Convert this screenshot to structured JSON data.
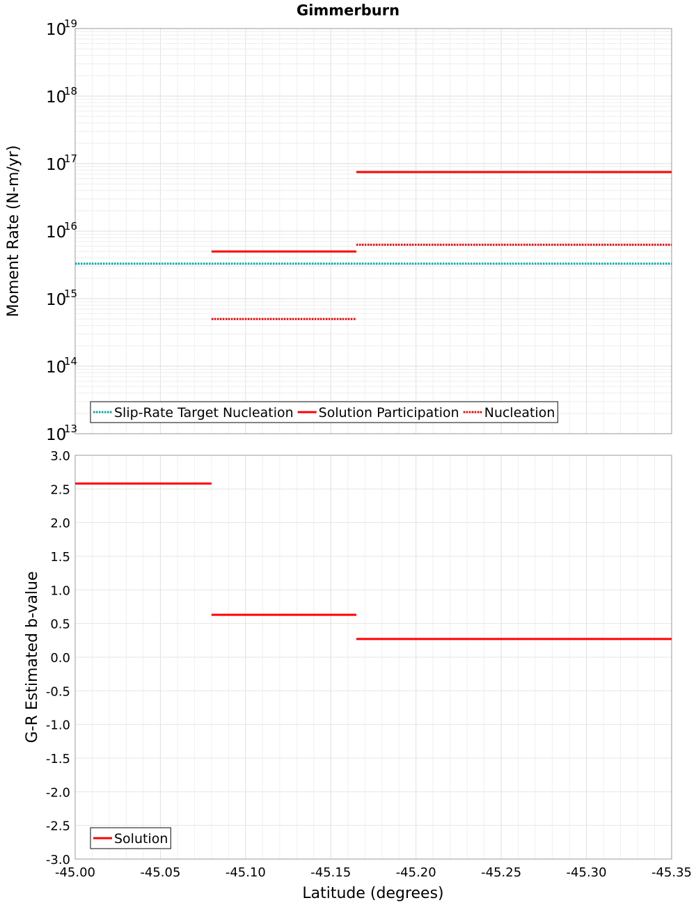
{
  "chart_data": [
    {
      "type": "line",
      "title": "Gimmerburn",
      "xlabel": "",
      "ylabel": "Moment Rate (N-m/yr)",
      "yscale": "log",
      "xlim": [
        -45.0,
        -45.35
      ],
      "ylim": [
        10000000000000.0,
        1e+19
      ],
      "yticks": [
        {
          "base": "10",
          "exp": "13",
          "value": 10000000000000.0
        },
        {
          "base": "10",
          "exp": "14",
          "value": 100000000000000.0
        },
        {
          "base": "10",
          "exp": "15",
          "value": 1000000000000000.0
        },
        {
          "base": "10",
          "exp": "16",
          "value": 1e+16
        },
        {
          "base": "10",
          "exp": "17",
          "value": 1e+17
        },
        {
          "base": "10",
          "exp": "18",
          "value": 1e+18
        },
        {
          "base": "10",
          "exp": "19",
          "value": 1e+19
        }
      ],
      "legend_position": "bottom-left",
      "series": [
        {
          "name": "Slip-Rate Target Nucleation",
          "color": "#00aaaa",
          "style": "dotted",
          "segments": [
            {
              "x0": -45.0,
              "x1": -45.35,
              "y": 3300000000000000.0
            }
          ]
        },
        {
          "name": "Solution Participation",
          "color": "#ff0000",
          "style": "solid",
          "segments": [
            {
              "x0": -45.08,
              "x1": -45.165,
              "y": 5000000000000000.0
            },
            {
              "x0": -45.165,
              "x1": -45.35,
              "y": 7.5e+16
            }
          ]
        },
        {
          "name": "Nucleation",
          "color": "#ff0000",
          "style": "dotted",
          "segments": [
            {
              "x0": -45.08,
              "x1": -45.165,
              "y": 500000000000000.0
            },
            {
              "x0": -45.165,
              "x1": -45.35,
              "y": 6300000000000000.0
            }
          ]
        }
      ]
    },
    {
      "type": "line",
      "title": "",
      "xlabel": "Latitude (degrees)",
      "ylabel": "G-R Estimated b-value",
      "xlim": [
        -45.0,
        -45.35
      ],
      "ylim": [
        -3.0,
        3.0
      ],
      "xticks": [
        "-45.00",
        "-45.05",
        "-45.10",
        "-45.15",
        "-45.20",
        "-45.25",
        "-45.30",
        "-45.35"
      ],
      "xtick_values": [
        -45.0,
        -45.05,
        -45.1,
        -45.15,
        -45.2,
        -45.25,
        -45.3,
        -45.35
      ],
      "yticks": [
        "3.0",
        "2.5",
        "2.0",
        "1.5",
        "1.0",
        "0.5",
        "0.0",
        "-0.5",
        "-1.0",
        "-1.5",
        "-2.0",
        "-2.5",
        "-3.0"
      ],
      "ytick_values": [
        3.0,
        2.5,
        2.0,
        1.5,
        1.0,
        0.5,
        0.0,
        -0.5,
        -1.0,
        -1.5,
        -2.0,
        -2.5,
        -3.0
      ],
      "legend_position": "bottom-left",
      "series": [
        {
          "name": "Solution",
          "color": "#ff0000",
          "style": "solid",
          "segments": [
            {
              "x0": -45.0,
              "x1": -45.08,
              "y": 2.58
            },
            {
              "x0": -45.08,
              "x1": -45.165,
              "y": 0.63
            },
            {
              "x0": -45.165,
              "x1": -45.35,
              "y": 0.27
            }
          ]
        }
      ]
    }
  ]
}
